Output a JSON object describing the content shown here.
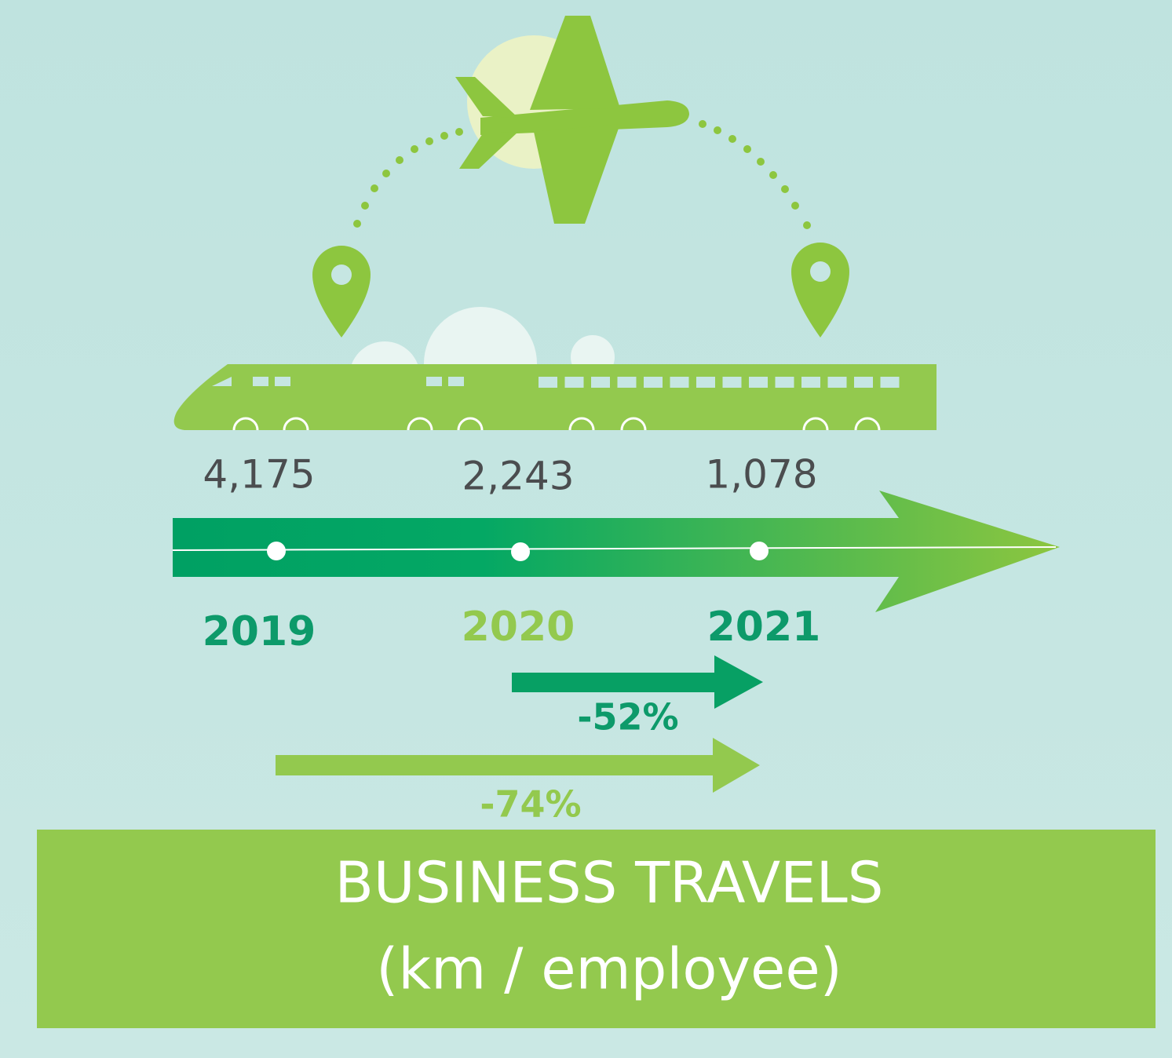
{
  "timeline": [
    {
      "value": "4,175",
      "year": "2019"
    },
    {
      "value": "2,243",
      "year": "2020"
    },
    {
      "value": "1,078",
      "year": "2021"
    }
  ],
  "changes": [
    {
      "label": "-52%"
    },
    {
      "label": "-74%"
    }
  ],
  "title": {
    "line1": "BUSINESS TRAVELS",
    "line2": "(km / employee)"
  }
}
